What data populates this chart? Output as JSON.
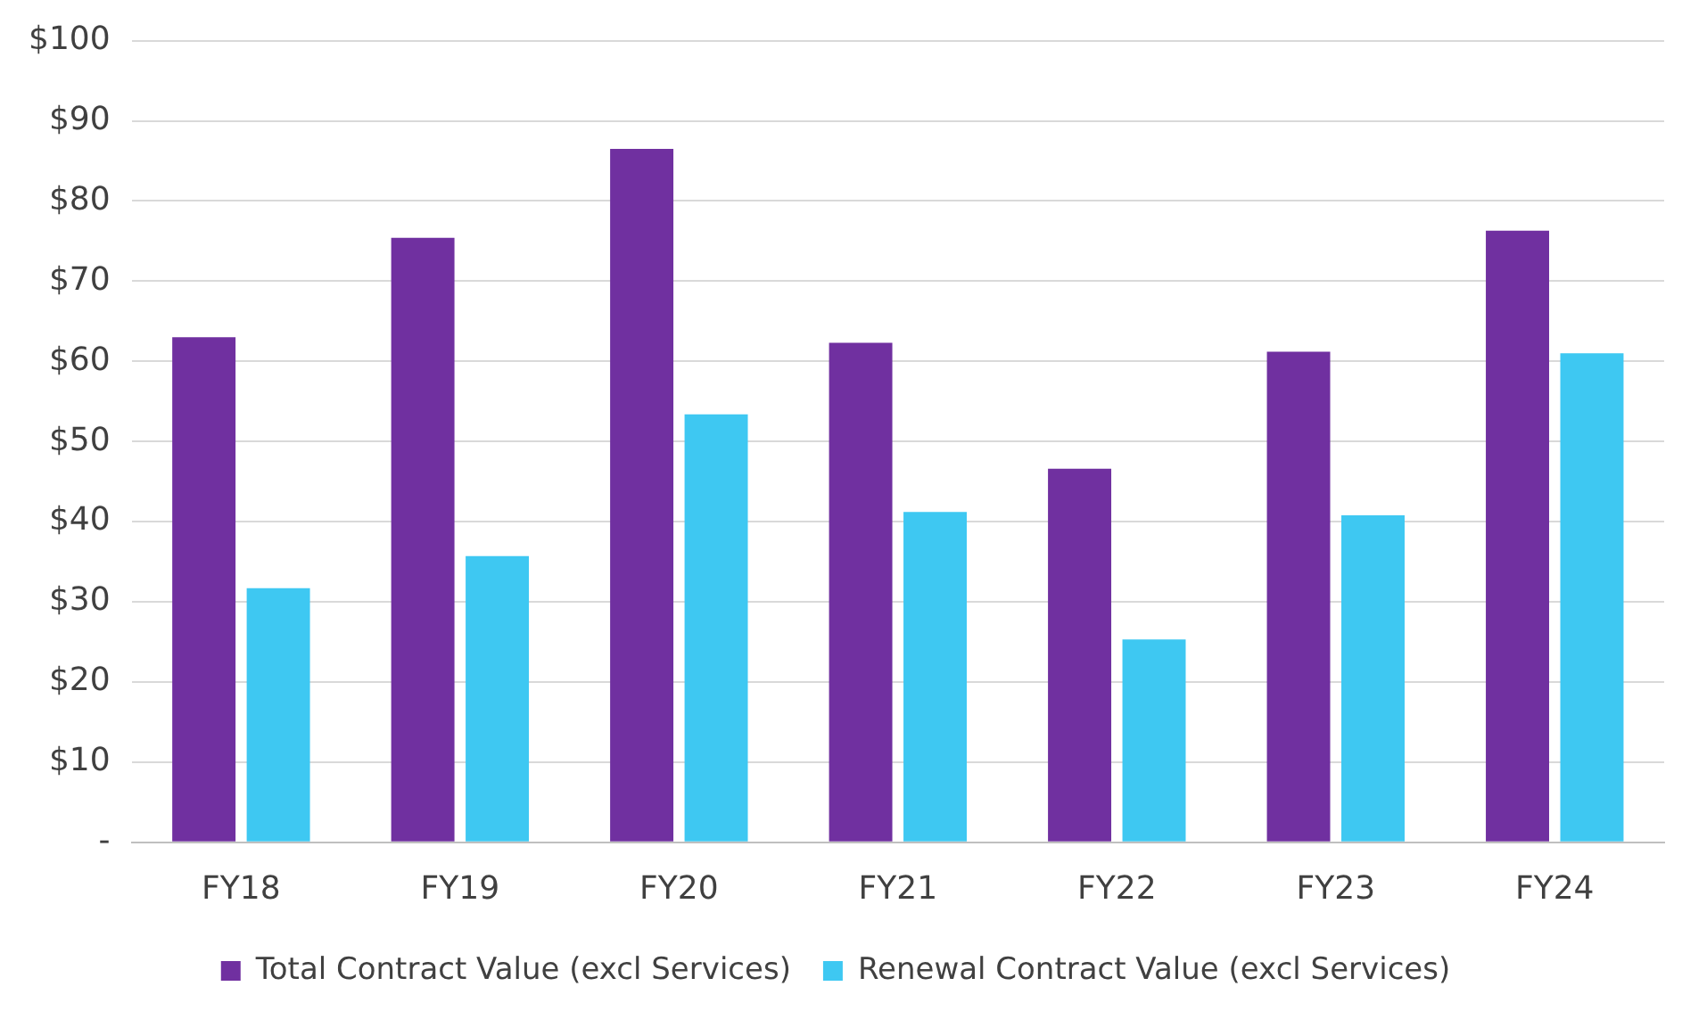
{
  "chart_data": {
    "type": "bar",
    "categories": [
      "FY18",
      "FY19",
      "FY20",
      "FY21",
      "FY22",
      "FY23",
      "FY24"
    ],
    "series": [
      {
        "name": "Total Contract Value (excl Services)",
        "color": "#7030a0",
        "values": [
          63.0,
          75.4,
          86.5,
          62.3,
          46.6,
          61.2,
          76.3
        ]
      },
      {
        "name": "Renewal Contract Value (excl Services)",
        "color": "#3ec8f2",
        "values": [
          31.7,
          35.7,
          53.4,
          41.2,
          25.3,
          40.8,
          61.0
        ]
      }
    ],
    "ylim": [
      0,
      100
    ],
    "yticks": [
      {
        "value": 0,
        "label": "-"
      },
      {
        "value": 10,
        "label": "$10"
      },
      {
        "value": 20,
        "label": "$20"
      },
      {
        "value": 30,
        "label": "$30"
      },
      {
        "value": 40,
        "label": "$40"
      },
      {
        "value": 50,
        "label": "$50"
      },
      {
        "value": 60,
        "label": "$60"
      },
      {
        "value": 70,
        "label": "$70"
      },
      {
        "value": 80,
        "label": "$80"
      },
      {
        "value": 90,
        "label": "$90"
      },
      {
        "value": 100,
        "label": "$100"
      }
    ],
    "grid": "y",
    "legend": "bottom"
  }
}
